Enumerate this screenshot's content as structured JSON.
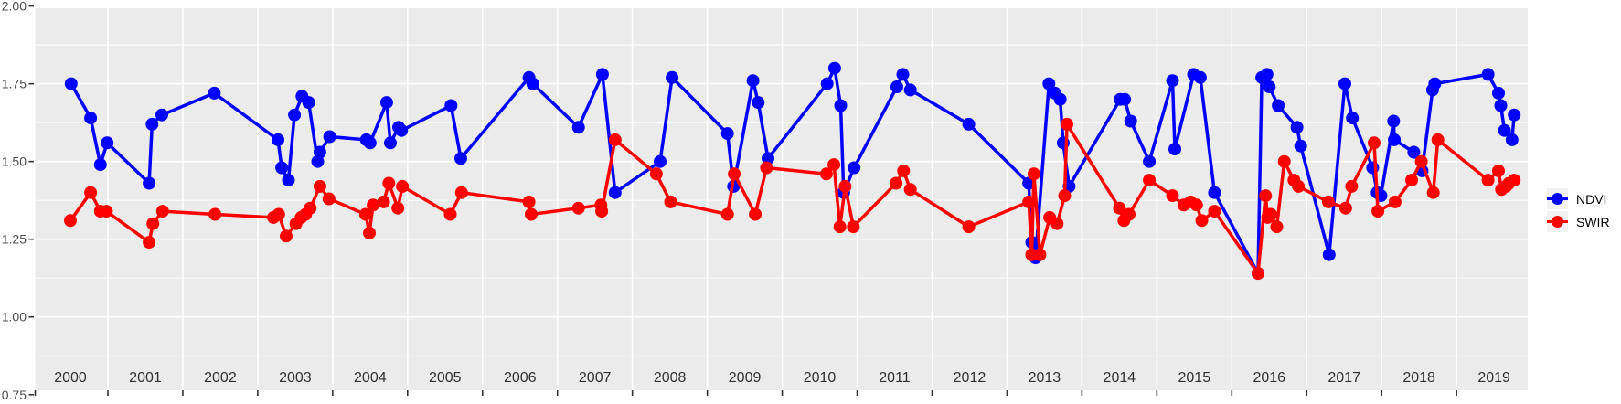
{
  "chart_data": {
    "type": "line",
    "title": "",
    "xlabel": "",
    "ylabel": "",
    "grid": {
      "show": true,
      "major_color": "#ffffff",
      "minor_color": "#ffffff",
      "panel_background": "#EBEBEB"
    },
    "xlim": [
      2000.03,
      2019.95
    ],
    "ylim": [
      0.764,
      1.993
    ],
    "x_ticks": [
      {
        "year": 2000,
        "label": "2000"
      },
      {
        "year": 2001,
        "label": "2001"
      },
      {
        "year": 2002,
        "label": "2002"
      },
      {
        "year": 2003,
        "label": "2003"
      },
      {
        "year": 2004,
        "label": "2004"
      },
      {
        "year": 2005,
        "label": "2005"
      },
      {
        "year": 2006,
        "label": "2006"
      },
      {
        "year": 2007,
        "label": "2007"
      },
      {
        "year": 2008,
        "label": "2008"
      },
      {
        "year": 2009,
        "label": "2009"
      },
      {
        "year": 2010,
        "label": "2010"
      },
      {
        "year": 2011,
        "label": "2011"
      },
      {
        "year": 2012,
        "label": "2012"
      },
      {
        "year": 2013,
        "label": "2013"
      },
      {
        "year": 2014,
        "label": "2014"
      },
      {
        "year": 2015,
        "label": "2015"
      },
      {
        "year": 2016,
        "label": "2016"
      },
      {
        "year": 2017,
        "label": "2017"
      },
      {
        "year": 2018,
        "label": "2018"
      },
      {
        "year": 2019,
        "label": "2019"
      }
    ],
    "y_ticks": [
      {
        "value": 2.0,
        "label": "2.00"
      },
      {
        "value": 1.75,
        "label": "1.75"
      },
      {
        "value": 1.5,
        "label": "1.50"
      },
      {
        "value": 1.25,
        "label": "1.25"
      },
      {
        "value": 1.0,
        "label": "1.00"
      },
      {
        "value": 0.75,
        "label": "0.75"
      }
    ],
    "y_minor_gridlines": [
      1.875,
      1.625,
      1.375,
      1.125,
      0.875
    ],
    "y_major_gridlines": [
      1.75,
      1.5,
      1.25,
      1.0
    ],
    "legend": {
      "position": "right",
      "entries": [
        {
          "label": "NDVI",
          "color": "#0000FF"
        },
        {
          "label": "SWIR",
          "color": "#FF0000"
        }
      ]
    },
    "series": [
      {
        "name": "NDVI",
        "color": "#0000FF",
        "points": [
          [
            2000.51,
            1.75
          ],
          [
            2000.77,
            1.64
          ],
          [
            2000.9,
            1.49
          ],
          [
            2000.99,
            1.56
          ],
          [
            2001.55,
            1.43
          ],
          [
            2001.59,
            1.62
          ],
          [
            2001.72,
            1.65
          ],
          [
            2002.42,
            1.72
          ],
          [
            2003.27,
            1.57
          ],
          [
            2003.32,
            1.48
          ],
          [
            2003.41,
            1.44
          ],
          [
            2003.49,
            1.65
          ],
          [
            2003.59,
            1.71
          ],
          [
            2003.68,
            1.69
          ],
          [
            2003.8,
            1.5
          ],
          [
            2003.83,
            1.53
          ],
          [
            2003.96,
            1.58
          ],
          [
            2004.45,
            1.57
          ],
          [
            2004.5,
            1.56
          ],
          [
            2004.72,
            1.69
          ],
          [
            2004.77,
            1.56
          ],
          [
            2004.88,
            1.61
          ],
          [
            2004.92,
            1.6
          ],
          [
            2005.58,
            1.68
          ],
          [
            2005.71,
            1.51
          ],
          [
            2006.62,
            1.77
          ],
          [
            2006.67,
            1.75
          ],
          [
            2007.28,
            1.61
          ],
          [
            2007.6,
            1.78
          ],
          [
            2007.77,
            1.4
          ],
          [
            2008.37,
            1.5
          ],
          [
            2008.53,
            1.77
          ],
          [
            2009.27,
            1.59
          ],
          [
            2009.35,
            1.42
          ],
          [
            2009.61,
            1.76
          ],
          [
            2009.68,
            1.69
          ],
          [
            2009.81,
            1.51
          ],
          [
            2010.6,
            1.75
          ],
          [
            2010.7,
            1.8
          ],
          [
            2010.78,
            1.68
          ],
          [
            2010.82,
            1.4
          ],
          [
            2010.96,
            1.48
          ],
          [
            2011.53,
            1.74
          ],
          [
            2011.61,
            1.78
          ],
          [
            2011.71,
            1.73
          ],
          [
            2012.49,
            1.62
          ],
          [
            2013.29,
            1.43
          ],
          [
            2013.33,
            1.24
          ],
          [
            2013.38,
            1.19
          ],
          [
            2013.56,
            1.75
          ],
          [
            2013.64,
            1.72
          ],
          [
            2013.71,
            1.7
          ],
          [
            2013.75,
            1.56
          ],
          [
            2013.83,
            1.42
          ],
          [
            2014.51,
            1.7
          ],
          [
            2014.57,
            1.7
          ],
          [
            2014.65,
            1.63
          ],
          [
            2014.9,
            1.5
          ],
          [
            2015.21,
            1.76
          ],
          [
            2015.24,
            1.54
          ],
          [
            2015.49,
            1.78
          ],
          [
            2015.58,
            1.77
          ],
          [
            2015.77,
            1.4
          ],
          [
            2016.35,
            1.14
          ],
          [
            2016.4,
            1.77
          ],
          [
            2016.47,
            1.78
          ],
          [
            2016.5,
            1.74
          ],
          [
            2016.62,
            1.68
          ],
          [
            2016.87,
            1.61
          ],
          [
            2016.92,
            1.55
          ],
          [
            2017.3,
            1.2
          ],
          [
            2017.51,
            1.75
          ],
          [
            2017.61,
            1.64
          ],
          [
            2017.88,
            1.48
          ],
          [
            2017.94,
            1.4
          ],
          [
            2017.99,
            1.39
          ],
          [
            2018.16,
            1.63
          ],
          [
            2018.17,
            1.57
          ],
          [
            2018.43,
            1.53
          ],
          [
            2018.54,
            1.47
          ],
          [
            2018.68,
            1.73
          ],
          [
            2018.71,
            1.75
          ],
          [
            2019.42,
            1.78
          ],
          [
            2019.56,
            1.72
          ],
          [
            2019.59,
            1.68
          ],
          [
            2019.64,
            1.6
          ],
          [
            2019.74,
            1.57
          ],
          [
            2019.77,
            1.65
          ]
        ]
      },
      {
        "name": "SWIR",
        "color": "#FF0000",
        "points": [
          [
            2000.5,
            1.31
          ],
          [
            2000.77,
            1.4
          ],
          [
            2000.9,
            1.34
          ],
          [
            2000.98,
            1.34
          ],
          [
            2001.55,
            1.24
          ],
          [
            2001.6,
            1.3
          ],
          [
            2001.73,
            1.34
          ],
          [
            2002.43,
            1.33
          ],
          [
            2003.21,
            1.32
          ],
          [
            2003.28,
            1.33
          ],
          [
            2003.38,
            1.26
          ],
          [
            2003.51,
            1.3
          ],
          [
            2003.58,
            1.32
          ],
          [
            2003.64,
            1.33
          ],
          [
            2003.7,
            1.35
          ],
          [
            2003.83,
            1.42
          ],
          [
            2003.95,
            1.38
          ],
          [
            2004.44,
            1.33
          ],
          [
            2004.49,
            1.27
          ],
          [
            2004.54,
            1.36
          ],
          [
            2004.68,
            1.37
          ],
          [
            2004.75,
            1.43
          ],
          [
            2004.87,
            1.35
          ],
          [
            2004.93,
            1.42
          ],
          [
            2005.57,
            1.33
          ],
          [
            2005.72,
            1.4
          ],
          [
            2006.62,
            1.37
          ],
          [
            2006.65,
            1.33
          ],
          [
            2007.28,
            1.35
          ],
          [
            2007.58,
            1.36
          ],
          [
            2007.59,
            1.34
          ],
          [
            2007.77,
            1.57
          ],
          [
            2008.32,
            1.46
          ],
          [
            2008.51,
            1.37
          ],
          [
            2009.27,
            1.33
          ],
          [
            2009.36,
            1.46
          ],
          [
            2009.64,
            1.33
          ],
          [
            2009.79,
            1.48
          ],
          [
            2010.59,
            1.46
          ],
          [
            2010.69,
            1.49
          ],
          [
            2010.77,
            1.29
          ],
          [
            2010.84,
            1.42
          ],
          [
            2010.95,
            1.29
          ],
          [
            2011.52,
            1.43
          ],
          [
            2011.62,
            1.47
          ],
          [
            2011.71,
            1.41
          ],
          [
            2012.49,
            1.29
          ],
          [
            2013.29,
            1.37
          ],
          [
            2013.33,
            1.2
          ],
          [
            2013.36,
            1.46
          ],
          [
            2013.44,
            1.2
          ],
          [
            2013.57,
            1.32
          ],
          [
            2013.67,
            1.3
          ],
          [
            2013.77,
            1.39
          ],
          [
            2013.8,
            1.62
          ],
          [
            2014.5,
            1.35
          ],
          [
            2014.56,
            1.31
          ],
          [
            2014.63,
            1.33
          ],
          [
            2014.9,
            1.44
          ],
          [
            2015.21,
            1.39
          ],
          [
            2015.36,
            1.36
          ],
          [
            2015.45,
            1.37
          ],
          [
            2015.53,
            1.36
          ],
          [
            2015.6,
            1.31
          ],
          [
            2015.77,
            1.34
          ],
          [
            2016.35,
            1.14
          ],
          [
            2016.45,
            1.39
          ],
          [
            2016.48,
            1.32
          ],
          [
            2016.52,
            1.33
          ],
          [
            2016.6,
            1.29
          ],
          [
            2016.7,
            1.5
          ],
          [
            2016.83,
            1.44
          ],
          [
            2016.89,
            1.42
          ],
          [
            2017.29,
            1.37
          ],
          [
            2017.52,
            1.35
          ],
          [
            2017.6,
            1.42
          ],
          [
            2017.9,
            1.56
          ],
          [
            2017.95,
            1.34
          ],
          [
            2018.18,
            1.37
          ],
          [
            2018.4,
            1.44
          ],
          [
            2018.53,
            1.5
          ],
          [
            2018.69,
            1.4
          ],
          [
            2018.75,
            1.57
          ],
          [
            2019.42,
            1.44
          ],
          [
            2019.56,
            1.47
          ],
          [
            2019.6,
            1.41
          ],
          [
            2019.66,
            1.42
          ],
          [
            2019.7,
            1.43
          ],
          [
            2019.77,
            1.44
          ]
        ]
      }
    ],
    "style": {
      "point_radius": 7,
      "line_width": 3.5,
      "axis_text_color_y": "#4d4d4d",
      "axis_text_color_x": "#303030",
      "tick_color": "#333333"
    }
  }
}
